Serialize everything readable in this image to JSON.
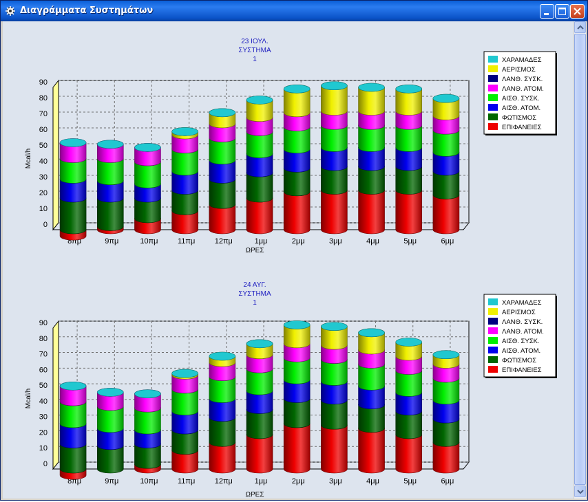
{
  "window": {
    "title": "Διαγράμματα Συστημάτων"
  },
  "colors": {
    "ΧΑΡΑΜΑΔΕΣ": "#20c8d0",
    "ΑΕΡΙΣΜΟΣ": "#f0f000",
    "ΛΑΝΘ. ΣΥΣΚ.": "#000080",
    "ΛΑΝΘ. ΑΤΟΜ.": "#ff00ff",
    "ΑΙΣΘ. ΣΥΣΚ.": "#00ee00",
    "ΑΙΣΘ. ΑΤΟΜ.": "#0000ee",
    "ΦΩΤΙΣΜΟΣ": "#006600",
    "ΕΠΙΦΑΝΕΙΕΣ": "#ee0000"
  },
  "chart_data": [
    {
      "type": "bar",
      "stacked": true,
      "title_lines": [
        "23 ΙΟΥΛ.",
        "ΣΥΣΤΗΜΑ",
        "1"
      ],
      "xlabel": "ΩΡΕΣ",
      "ylabel": "Mcal/h",
      "ylim": [
        0,
        90
      ],
      "yticks": [
        "0",
        "10",
        "20",
        "30",
        "40",
        "50",
        "60",
        "70",
        "80",
        "90"
      ],
      "categories": [
        "8πμ",
        "9πμ",
        "10πμ",
        "11πμ",
        "12πμ",
        "1μμ",
        "2μμ",
        "3μμ",
        "4μμ",
        "5μμ",
        "6μμ"
      ],
      "legend": [
        "ΧΑΡΑΜΑΔΕΣ",
        "ΑΕΡΙΣΜΟΣ",
        "ΛΑΝΘ. ΣΥΣΚ.",
        "ΛΑΝΘ. ΑΤΟΜ.",
        "ΑΙΣΘ. ΣΥΣΚ.",
        "ΑΙΣΘ. ΑΤΟΜ.",
        "ΦΩΤΙΣΜΟΣ",
        "ΕΠΙΦΑΝΕΙΕΣ"
      ],
      "series": [
        {
          "name": "ΕΠΙΦΑΝΕΙΕΣ",
          "values": [
            -4,
            2,
            7,
            12,
            16,
            20,
            24,
            25,
            25,
            25,
            22
          ]
        },
        {
          "name": "ΦΩΤΙΣΜΟΣ",
          "values": [
            20,
            18,
            13,
            13,
            16,
            16,
            15,
            15,
            15,
            15,
            15
          ]
        },
        {
          "name": "ΑΙΣΘ. ΑΤΟΜ.",
          "values": [
            12,
            11,
            9,
            12,
            12,
            12,
            12,
            12,
            12,
            12,
            12
          ]
        },
        {
          "name": "ΑΙΣΘ. ΣΥΣΚ.",
          "values": [
            13,
            14,
            14,
            14,
            14,
            14,
            14,
            14,
            14,
            14,
            14
          ]
        },
        {
          "name": "ΛΑΝΘ. ΣΥΣΚ.",
          "values": [
            0,
            0,
            0,
            0,
            0,
            0,
            0,
            0,
            0,
            0,
            0
          ]
        },
        {
          "name": "ΛΑΝΘ. ΑΤΟΜ.",
          "values": [
            10,
            9,
            9,
            9,
            9,
            9,
            9,
            9,
            9,
            9,
            9
          ]
        },
        {
          "name": "ΑΕΡΙΣΜΟΣ",
          "values": [
            0,
            0,
            0,
            2,
            7,
            11,
            15,
            16,
            15,
            14,
            11
          ]
        },
        {
          "name": "ΧΑΡΑΜΑΔΕΣ",
          "values": [
            0,
            0,
            0,
            0,
            0,
            0,
            0,
            0,
            0,
            0,
            0
          ]
        }
      ]
    },
    {
      "type": "bar",
      "stacked": true,
      "title_lines": [
        "24 ΑΥΓ.",
        "ΣΥΣΤΗΜΑ",
        "1"
      ],
      "xlabel": "ΩΡΕΣ",
      "ylabel": "Mcal/h",
      "ylim": [
        0,
        90
      ],
      "yticks": [
        "0",
        "10",
        "20",
        "30",
        "40",
        "50",
        "60",
        "70",
        "80",
        "90"
      ],
      "categories": [
        "8πμ",
        "9πμ",
        "10πμ",
        "11πμ",
        "12πμ",
        "1μμ",
        "2μμ",
        "3μμ",
        "4μμ",
        "5μμ",
        "6μμ"
      ],
      "legend": [
        "ΧΑΡΑΜΑΔΕΣ",
        "ΑΕΡΙΣΜΟΣ",
        "ΛΑΝΘ. ΣΥΣΚ.",
        "ΛΑΝΘ. ΑΤΟΜ.",
        "ΑΙΣΘ. ΣΥΣΚ.",
        "ΑΙΣΘ. ΑΤΟΜ.",
        "ΦΩΤΙΣΜΟΣ",
        "ΕΠΙΦΑΝΕΙΕΣ"
      ],
      "series": [
        {
          "name": "ΕΠΙΦΑΝΕΙΕΣ",
          "values": [
            -4,
            0,
            3,
            12,
            17,
            22,
            29,
            28,
            26,
            22,
            17
          ]
        },
        {
          "name": "ΦΩΤΙΣΜΟΣ",
          "values": [
            16,
            15,
            13,
            13,
            16,
            16,
            16,
            16,
            15,
            15,
            15
          ]
        },
        {
          "name": "ΑΙΣΘ. ΑΤΟΜ.",
          "values": [
            13,
            11,
            9,
            12,
            12,
            12,
            12,
            12,
            12,
            12,
            12
          ]
        },
        {
          "name": "ΑΙΣΘ. ΣΥΣΚ.",
          "values": [
            14,
            14,
            14,
            14,
            14,
            14,
            14,
            14,
            14,
            14,
            14
          ]
        },
        {
          "name": "ΛΑΝΘ. ΣΥΣΚ.",
          "values": [
            0,
            0,
            0,
            0,
            0,
            0,
            0,
            0,
            0,
            0,
            0
          ]
        },
        {
          "name": "ΛΑΝΘ. ΑΤΟΜ.",
          "values": [
            10,
            9,
            9,
            9,
            9,
            9,
            9,
            9,
            9,
            9,
            9
          ]
        },
        {
          "name": "ΑΕΡΙΣΜΟΣ",
          "values": [
            0,
            0,
            0,
            1,
            4,
            7,
            12,
            12,
            11,
            9,
            6
          ]
        },
        {
          "name": "ΧΑΡΑΜΑΔΕΣ",
          "values": [
            0,
            0,
            0,
            0,
            0,
            0,
            0,
            0,
            0,
            0,
            0
          ]
        }
      ]
    }
  ]
}
